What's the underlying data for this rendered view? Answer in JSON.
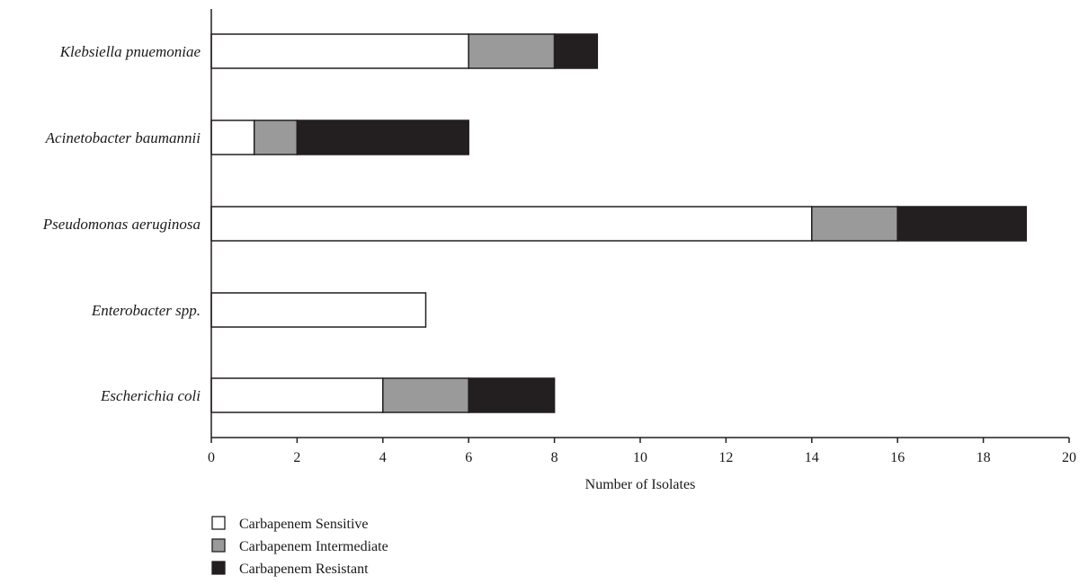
{
  "chart_data": {
    "type": "bar",
    "orientation": "horizontal",
    "stacked": true,
    "categories": [
      "Klebsiella pnuemoniae",
      "Acinetobacter baumannii",
      "Pseudomonas aeruginosa",
      "Enterobacter spp.",
      "Escherichia coli"
    ],
    "series": [
      {
        "name": "Carbapenem Sensitive",
        "values": [
          6,
          1,
          14,
          5,
          4
        ],
        "color": "#ffffff"
      },
      {
        "name": "Carbapenem Intermediate",
        "values": [
          2,
          1,
          2,
          0,
          2
        ],
        "color": "#9a9a9a"
      },
      {
        "name": "Carbapenem Resistant",
        "values": [
          1,
          4,
          3,
          0,
          2
        ],
        "color": "#231f20"
      }
    ],
    "title": "",
    "xlabel": "Number of Isolates",
    "ylabel": "",
    "xlim": [
      0,
      20
    ],
    "xticks": [
      0,
      2,
      4,
      6,
      8,
      10,
      12,
      14,
      16,
      18,
      20
    ],
    "grid": false,
    "legend_position": "bottom-left"
  }
}
